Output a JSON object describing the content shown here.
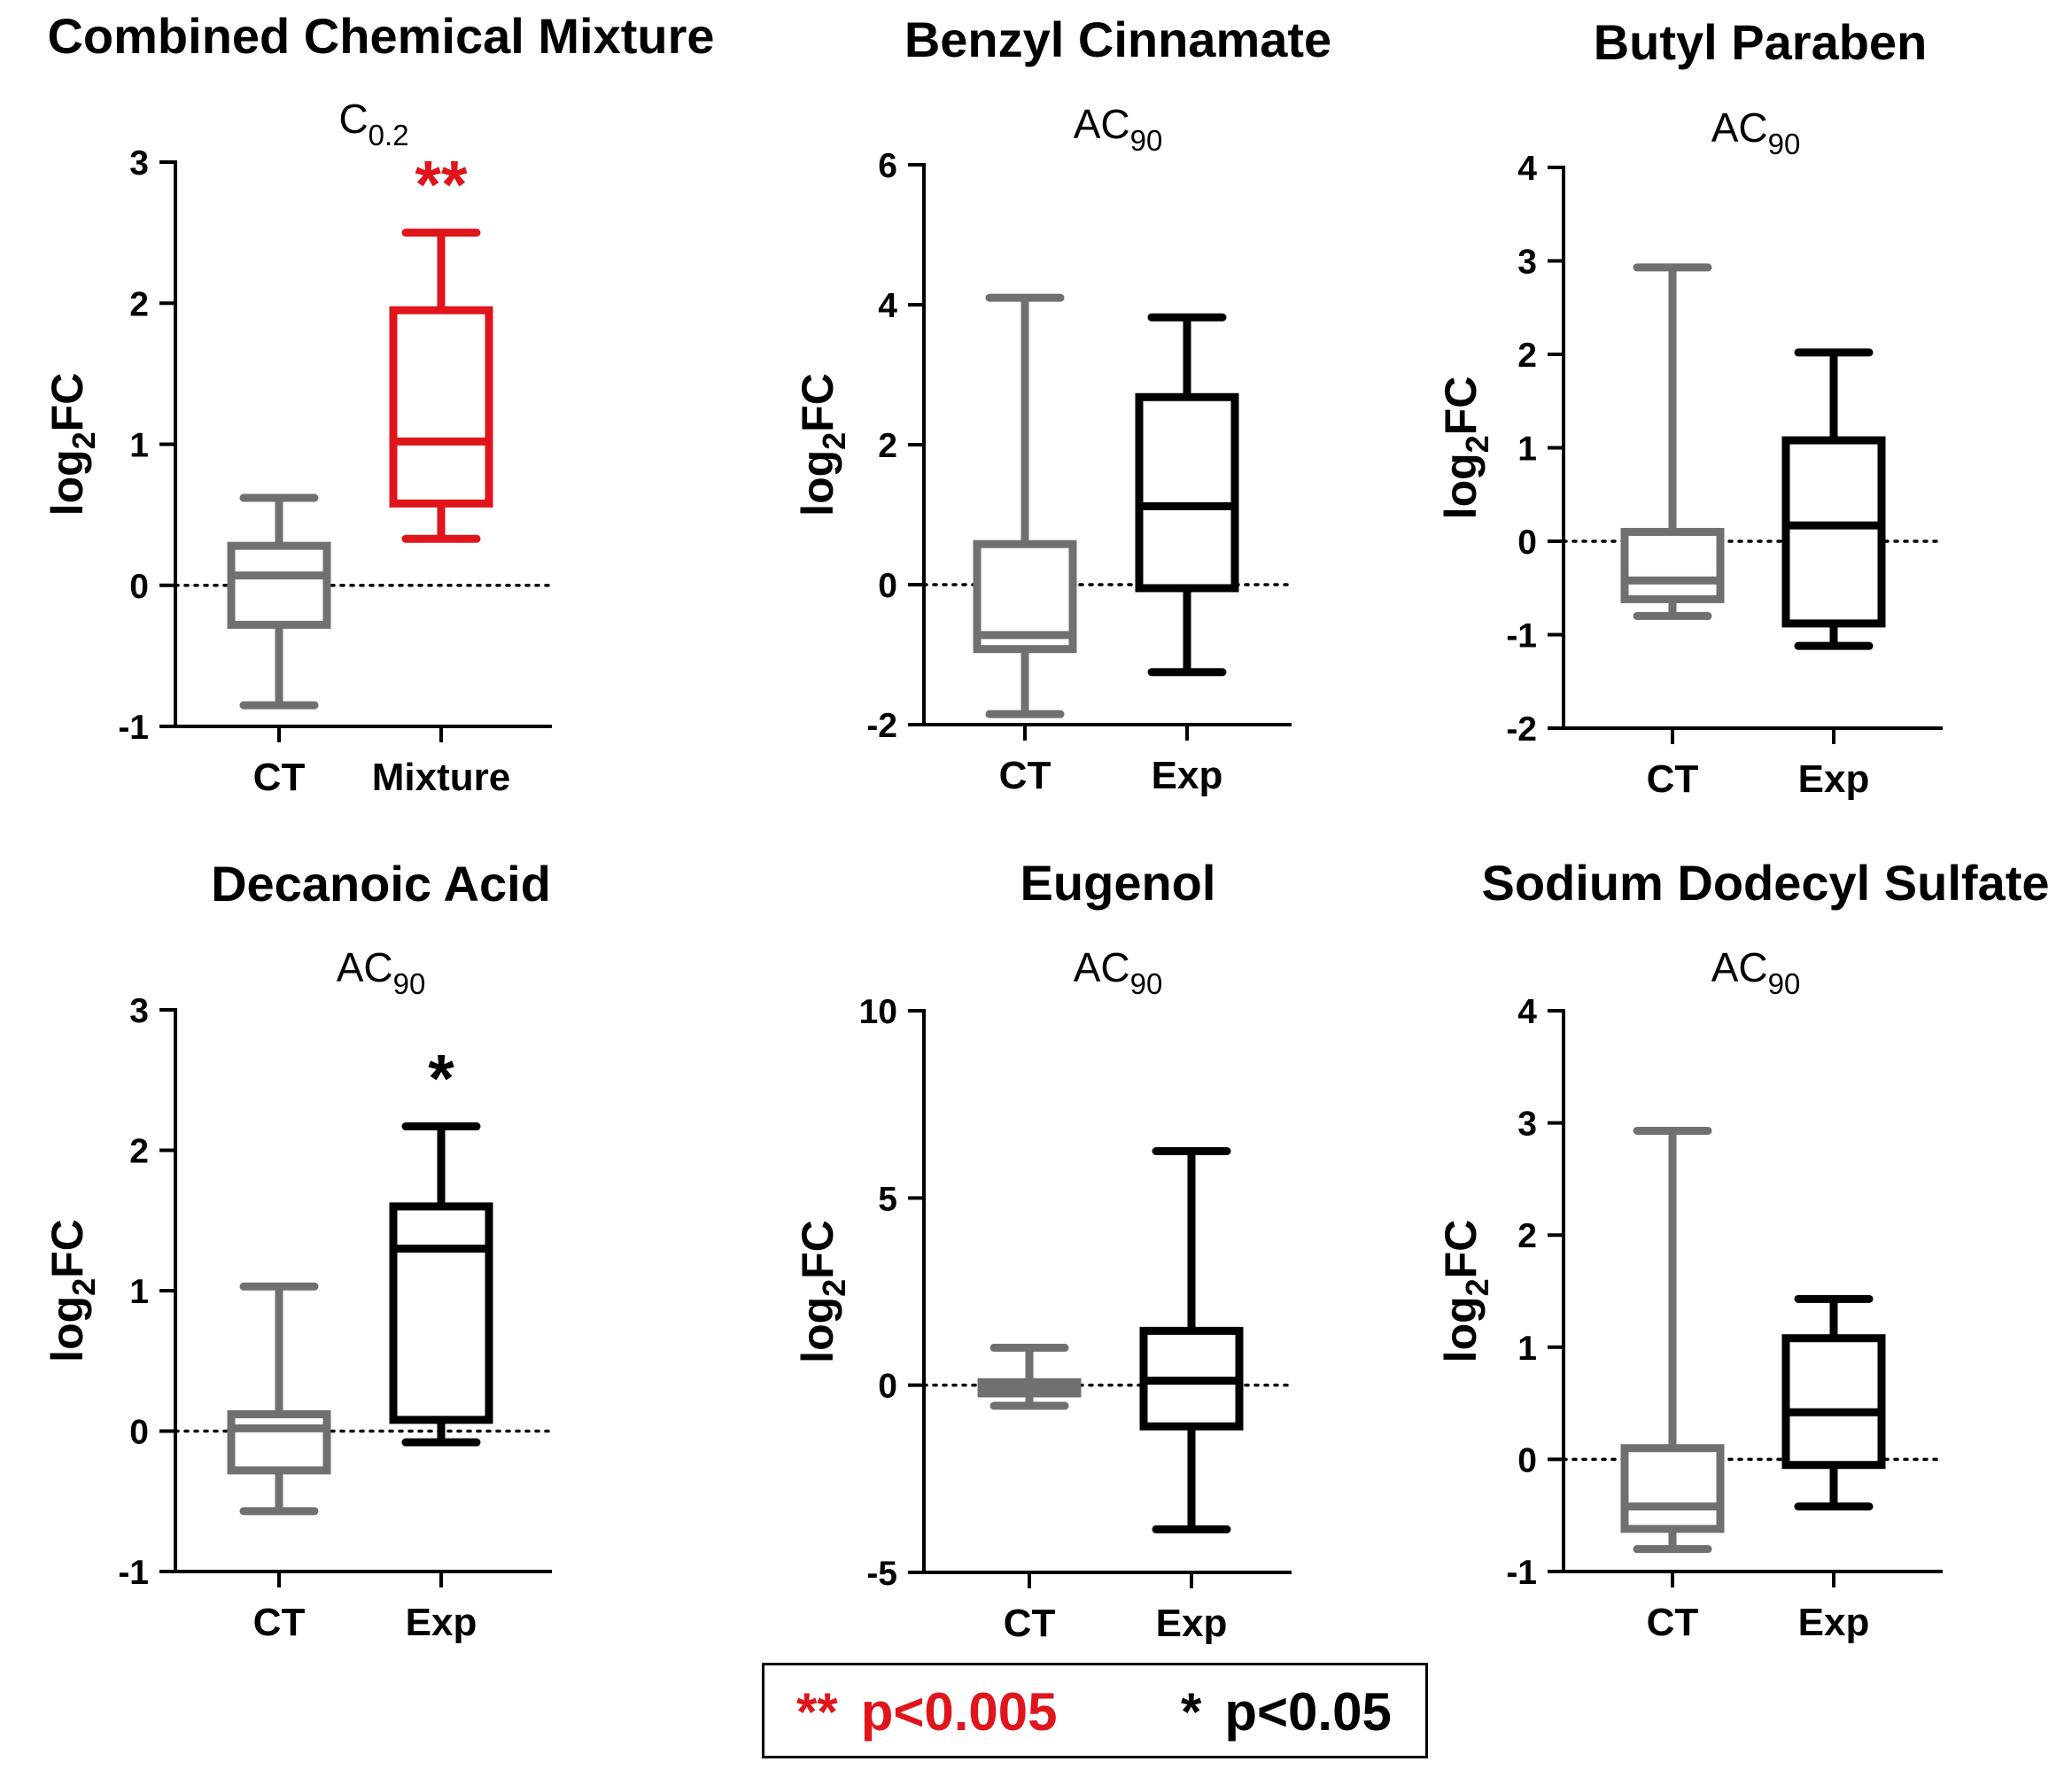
{
  "significance_legend": {
    "items": [
      {
        "symbol": "**",
        "label": "p<0.005",
        "color": "#e0141b"
      },
      {
        "symbol": "*",
        "label": "p<0.05",
        "color": "#000000"
      }
    ]
  },
  "colors": {
    "control": "#707070",
    "experiment": "#000000",
    "significant_strong": "#e0141b",
    "axis": "#000000"
  },
  "chart_data": [
    {
      "type": "box",
      "title": "Combined Chemical Mixture",
      "subtitle": {
        "base": "C",
        "sub": "0.2"
      },
      "ylabel": {
        "base": "log",
        "sub": "2",
        "rest": "FC"
      },
      "ylim": [
        -1,
        3
      ],
      "yticks": [
        -1,
        0,
        1,
        2,
        3
      ],
      "reference_line": 0,
      "categories": [
        "CT",
        "Mixture"
      ],
      "boxes": [
        {
          "category": "CT",
          "min": -0.85,
          "q1": -0.28,
          "median": 0.07,
          "q3": 0.28,
          "max": 0.62,
          "color": "#707070"
        },
        {
          "category": "Mixture",
          "min": 0.33,
          "q1": 0.58,
          "median": 1.02,
          "q3": 1.95,
          "max": 2.5,
          "color": "#e0141b"
        }
      ],
      "significance": {
        "category": "Mixture",
        "symbol": "**",
        "color": "#e0141b"
      }
    },
    {
      "type": "box",
      "title": "Benzyl Cinnamate",
      "subtitle": {
        "base": "AC",
        "sub": "90"
      },
      "ylabel": {
        "base": "log",
        "sub": "2",
        "rest": "FC"
      },
      "ylim": [
        -2,
        6
      ],
      "yticks": [
        -2,
        0,
        2,
        4,
        6
      ],
      "reference_line": 0,
      "categories": [
        "CT",
        "Exp"
      ],
      "boxes": [
        {
          "category": "CT",
          "min": -1.85,
          "q1": -0.92,
          "median": -0.72,
          "q3": 0.58,
          "max": 4.1,
          "color": "#707070"
        },
        {
          "category": "Exp",
          "min": -1.25,
          "q1": -0.05,
          "median": 1.12,
          "q3": 2.68,
          "max": 3.82,
          "color": "#000000"
        }
      ],
      "significance": null
    },
    {
      "type": "box",
      "title": "Butyl Paraben",
      "subtitle": {
        "base": "AC",
        "sub": "90"
      },
      "ylabel": {
        "base": "log",
        "sub": "2",
        "rest": "FC"
      },
      "ylim": [
        -2,
        4
      ],
      "yticks": [
        -2,
        -1,
        0,
        1,
        2,
        3,
        4
      ],
      "reference_line": 0,
      "categories": [
        "CT",
        "Exp"
      ],
      "boxes": [
        {
          "category": "CT",
          "min": -0.8,
          "q1": -0.62,
          "median": -0.42,
          "q3": 0.1,
          "max": 2.93,
          "color": "#707070"
        },
        {
          "category": "Exp",
          "min": -1.12,
          "q1": -0.88,
          "median": 0.17,
          "q3": 1.08,
          "max": 2.02,
          "color": "#000000"
        }
      ],
      "significance": null
    },
    {
      "type": "box",
      "title": "Decanoic Acid",
      "subtitle": {
        "base": "AC",
        "sub": "90"
      },
      "ylabel": {
        "base": "log",
        "sub": "2",
        "rest": "FC"
      },
      "ylim": [
        -1,
        3
      ],
      "yticks": [
        -1,
        0,
        1,
        2,
        3
      ],
      "reference_line": 0,
      "categories": [
        "CT",
        "Exp"
      ],
      "boxes": [
        {
          "category": "CT",
          "min": -0.57,
          "q1": -0.28,
          "median": 0.02,
          "q3": 0.12,
          "max": 1.03,
          "color": "#707070"
        },
        {
          "category": "Exp",
          "min": -0.08,
          "q1": 0.08,
          "median": 1.3,
          "q3": 1.6,
          "max": 2.17,
          "color": "#000000"
        }
      ],
      "significance": {
        "category": "Exp",
        "symbol": "*",
        "color": "#000000"
      }
    },
    {
      "type": "box",
      "title": "Eugenol",
      "subtitle": {
        "base": "AC",
        "sub": "90"
      },
      "ylabel": {
        "base": "log",
        "sub": "2",
        "rest": "FC"
      },
      "ylim": [
        -5,
        10
      ],
      "yticks": [
        -5,
        0,
        5,
        10
      ],
      "reference_line": 0,
      "categories": [
        "CT",
        "Exp"
      ],
      "boxes": [
        {
          "category": "CT",
          "min": -0.55,
          "q1": -0.22,
          "median": -0.08,
          "q3": 0.08,
          "max": 1.0,
          "color": "#707070"
        },
        {
          "category": "Exp",
          "min": -3.85,
          "q1": -1.1,
          "median": 0.12,
          "q3": 1.45,
          "max": 6.25,
          "color": "#000000"
        }
      ],
      "significance": null
    },
    {
      "type": "box",
      "title": "Sodium Dodecyl Sulfate",
      "subtitle": {
        "base": "AC",
        "sub": "90"
      },
      "ylabel": {
        "base": "log",
        "sub": "2",
        "rest": "FC"
      },
      "ylim": [
        -1,
        4
      ],
      "yticks": [
        -1,
        0,
        1,
        2,
        3,
        4
      ],
      "reference_line": 0,
      "categories": [
        "CT",
        "Exp"
      ],
      "boxes": [
        {
          "category": "CT",
          "min": -0.8,
          "q1": -0.62,
          "median": -0.42,
          "q3": 0.1,
          "max": 2.93,
          "color": "#707070"
        },
        {
          "category": "Exp",
          "min": -0.42,
          "q1": -0.05,
          "median": 0.42,
          "q3": 1.08,
          "max": 1.43,
          "color": "#000000"
        }
      ],
      "significance": null
    }
  ]
}
